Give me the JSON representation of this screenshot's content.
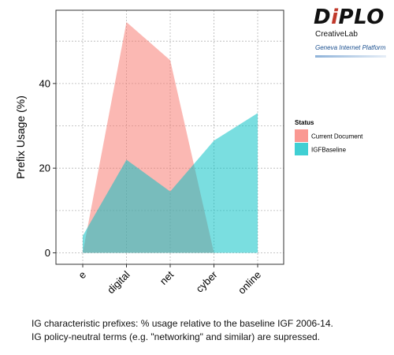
{
  "logo": {
    "main_prefix": "D",
    "main_accent": "i",
    "main_suffix": "PLO",
    "sub": "CreativeLab",
    "sub2": "Geneva Internet Platform"
  },
  "caption": {
    "line1": "IG characteristic prefixes: % usage relative to the baseline IGF 2006-14.",
    "line2": "IG policy-neutral terms (e.g. \"networking\" and similar) are supressed."
  },
  "chart_data": {
    "type": "area",
    "categories": [
      "e",
      "digital",
      "net",
      "cyber",
      "online"
    ],
    "series": [
      {
        "name": "Current Document",
        "color": "#F8766D",
        "values": [
          0,
          54.5,
          45.5,
          0,
          null
        ]
      },
      {
        "name": "IGFBaseline",
        "color": "#00BFC4",
        "values": [
          4.0,
          22.0,
          14.5,
          26.5,
          33.0
        ]
      }
    ],
    "ylabel": "Prefix Usage (%)",
    "xlabel": "",
    "yticks": [
      0,
      20,
      40
    ],
    "ylim": [
      -2.7,
      57.3
    ],
    "legend": {
      "title": "Status",
      "placement": "right"
    },
    "grid": true
  }
}
